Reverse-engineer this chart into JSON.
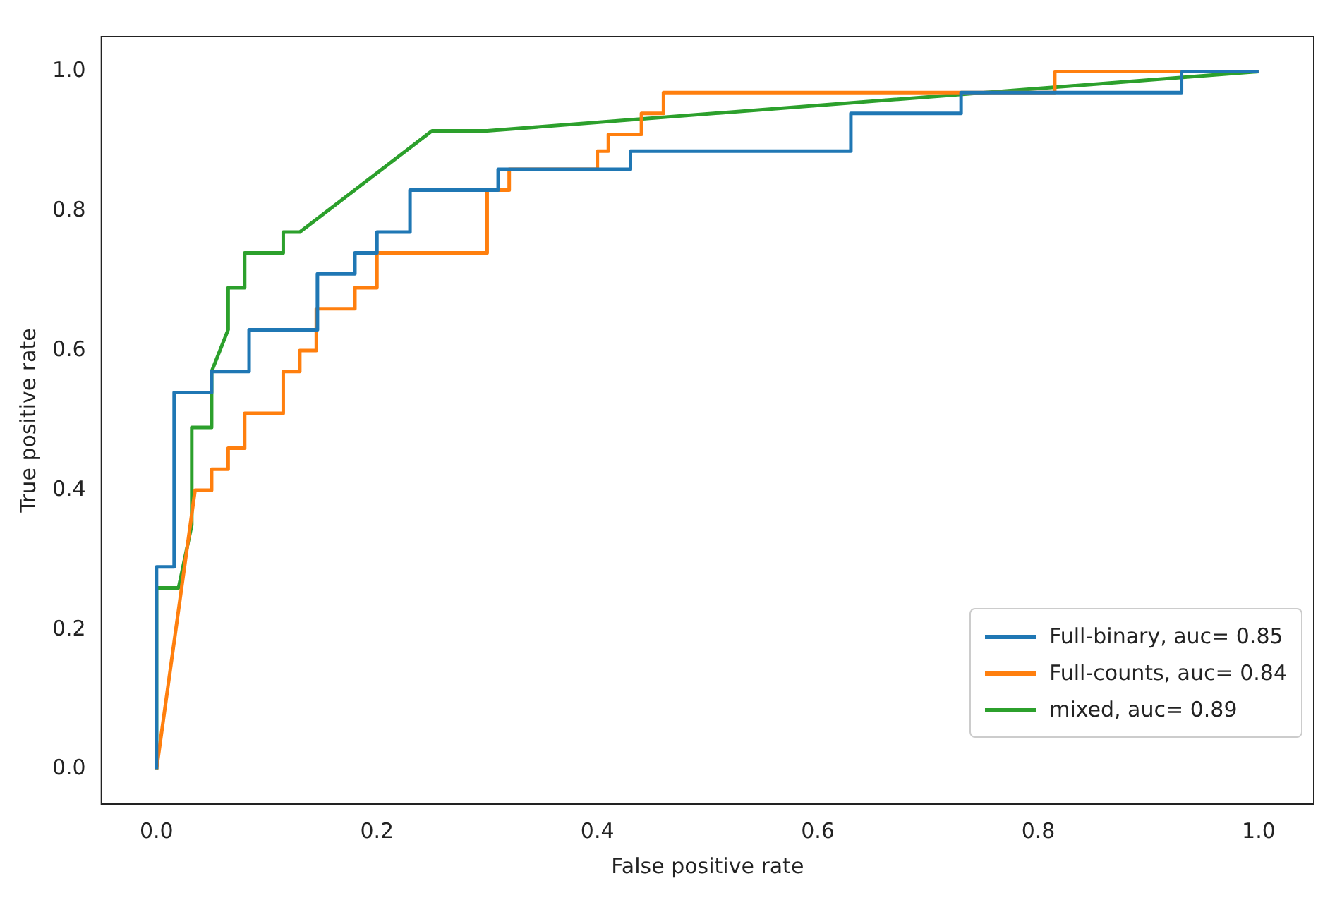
{
  "chart_data": {
    "type": "line",
    "xlabel": "False positive rate",
    "ylabel": "True positive rate",
    "xlim": [
      -0.05,
      1.05
    ],
    "ylim": [
      -0.05,
      1.05
    ],
    "xticks": [
      {
        "value": 0,
        "label": "0.0"
      },
      {
        "value": 0.2,
        "label": "0.2"
      },
      {
        "value": 0.4,
        "label": "0.4"
      },
      {
        "value": 0.6,
        "label": "0.6"
      },
      {
        "value": 0.8,
        "label": "0.8"
      },
      {
        "value": 1,
        "label": "1.0"
      }
    ],
    "yticks": [
      {
        "value": 0,
        "label": "0.0"
      },
      {
        "value": 0.2,
        "label": "0.2"
      },
      {
        "value": 0.4,
        "label": "0.4"
      },
      {
        "value": 0.6,
        "label": "0.6"
      },
      {
        "value": 0.8,
        "label": "0.8"
      },
      {
        "value": 1,
        "label": "1.0"
      }
    ],
    "grid": false,
    "legend": "bottom right",
    "marker": "none",
    "line_style": "solid",
    "series": [
      {
        "name": "Full-binary, auc= 0.85",
        "color": "#1f77b4",
        "x": [
          0,
          0,
          0.016,
          0.016,
          0.05,
          0.05,
          0.084,
          0.084,
          0.146,
          0.146,
          0.18,
          0.18,
          0.2,
          0.2,
          0.23,
          0.23,
          0.31,
          0.31,
          0.43,
          0.43,
          0.63,
          0.63,
          0.73,
          0.73,
          0.93,
          0.93,
          1
        ],
        "values": [
          0,
          0.29,
          0.29,
          0.54,
          0.54,
          0.57,
          0.57,
          0.63,
          0.63,
          0.71,
          0.71,
          0.74,
          0.74,
          0.77,
          0.77,
          0.83,
          0.83,
          0.86,
          0.86,
          0.886,
          0.886,
          0.94,
          0.94,
          0.97,
          0.97,
          1,
          1
        ]
      },
      {
        "name": "Full-counts, auc= 0.84",
        "color": "#ff7f0e",
        "x": [
          0,
          0.035,
          0.05,
          0.05,
          0.065,
          0.065,
          0.08,
          0.08,
          0.115,
          0.115,
          0.13,
          0.13,
          0.145,
          0.145,
          0.18,
          0.18,
          0.2,
          0.2,
          0.3,
          0.3,
          0.32,
          0.32,
          0.4,
          0.4,
          0.41,
          0.41,
          0.44,
          0.44,
          0.46,
          0.46,
          0.815,
          0.815,
          1
        ],
        "values": [
          0,
          0.4,
          0.4,
          0.43,
          0.43,
          0.46,
          0.46,
          0.51,
          0.51,
          0.57,
          0.57,
          0.6,
          0.6,
          0.66,
          0.66,
          0.69,
          0.69,
          0.74,
          0.74,
          0.83,
          0.83,
          0.86,
          0.86,
          0.886,
          0.886,
          0.91,
          0.91,
          0.94,
          0.94,
          0.97,
          0.97,
          1,
          1
        ]
      },
      {
        "name": "mixed, auc= 0.89",
        "color": "#2ca02c",
        "x": [
          0,
          0,
          0.02,
          0.032,
          0.032,
          0.05,
          0.05,
          0.065,
          0.065,
          0.08,
          0.08,
          0.115,
          0.115,
          0.13,
          0.25,
          0.3,
          1
        ],
        "values": [
          0,
          0.26,
          0.26,
          0.35,
          0.49,
          0.49,
          0.57,
          0.63,
          0.69,
          0.69,
          0.74,
          0.74,
          0.77,
          0.77,
          0.915,
          0.915,
          1
        ]
      }
    ]
  }
}
